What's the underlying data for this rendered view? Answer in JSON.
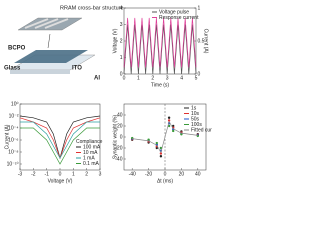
{
  "diagram": {
    "structure_label": "RRAM cross-bar structure",
    "layer_top": "BCPO",
    "layer_bottom": "Glass",
    "electrode": "ITO",
    "metal": "Al"
  },
  "chart_data": [
    {
      "type": "line",
      "x_label": "Time (s)",
      "y_label": "Voltage (V)",
      "y2_label": "Current (A)",
      "x": [
        0,
        0.25,
        0.5,
        0.75,
        1,
        1.25,
        1.5,
        1.75,
        2,
        2.25,
        2.5,
        2.75,
        3,
        3.25,
        3.5,
        3.75,
        4,
        4.25,
        4.5,
        4.75,
        5
      ],
      "xlim": [
        0,
        5
      ],
      "xticks": [
        0,
        1,
        2,
        3,
        4,
        5
      ],
      "ylim": [
        0,
        4
      ],
      "yticks": [
        0,
        1,
        2,
        3,
        4
      ],
      "y2lim": [
        0,
        1
      ],
      "y2ticks": [
        0,
        0.5,
        1
      ],
      "legend": "top",
      "series": [
        {
          "name": "Voltage pulse",
          "color": "#555555",
          "values": [
            0,
            3,
            0,
            3,
            0,
            3,
            0,
            3,
            0,
            3,
            0,
            3,
            0,
            3,
            0,
            3,
            0,
            3,
            0,
            3,
            0
          ]
        },
        {
          "name": "Response current",
          "color": "#e0409a",
          "axis": "y2",
          "values": [
            0.1,
            0.85,
            0.1,
            0.85,
            0.1,
            0.85,
            0.1,
            0.85,
            0.1,
            0.85,
            0.1,
            0.85,
            0.1,
            0.85,
            0.1,
            0.85,
            0.1,
            0.85,
            0.1,
            0.85,
            0.1
          ]
        }
      ]
    },
    {
      "type": "line",
      "x_label": "Voltage (V)",
      "y_label": "Current (A)",
      "log_y": true,
      "x": [
        -3,
        -2,
        -1,
        -0.5,
        0,
        0.5,
        1,
        2,
        3
      ],
      "xlim": [
        -3,
        3
      ],
      "xticks": [
        -3,
        -2,
        -1,
        0,
        1,
        2,
        3
      ],
      "ylim": [
        1e-11,
        1
      ],
      "yticks": [
        {
          "value": 1e-10,
          "label": "10⁻¹⁰"
        },
        {
          "value": 1e-08,
          "label": "10⁻⁸"
        },
        {
          "value": 1e-06,
          "label": "10⁻⁶"
        },
        {
          "value": 0.0001,
          "label": "10⁻⁴"
        },
        {
          "value": 0.01,
          "label": "10⁻²"
        },
        {
          "value": 1,
          "label": "10⁰"
        }
      ],
      "legend": "bottom-right",
      "legend_title": "Compliance",
      "series": [
        {
          "name": "100 mA",
          "color": "#222222",
          "values": [
            0.01,
            0.005,
            0.001,
            1e-05,
            1e-09,
            1e-05,
            0.001,
            0.005,
            0.01
          ]
        },
        {
          "name": "10 mA",
          "color": "#e03030",
          "values": [
            0.005,
            0.001,
            0.0001,
            1e-06,
            1e-09,
            1e-06,
            0.0001,
            0.001,
            0.005
          ]
        },
        {
          "name": "1 mA",
          "color": "#2aa0a0",
          "values": [
            0.001,
            0.001,
            1e-05,
            1e-07,
            1e-09,
            1e-07,
            1e-05,
            0.001,
            0.001
          ]
        },
        {
          "name": "0.1 mA",
          "color": "#3a9a3a",
          "values": [
            0.0001,
            0.0001,
            1e-06,
            1e-08,
            1e-10,
            1e-08,
            1e-06,
            0.0001,
            0.0001
          ]
        }
      ]
    },
    {
      "type": "scatter",
      "x_label": "Δt (ms)",
      "y_label": "Synaptic weight (%)",
      "x": [
        -40,
        -20,
        -10,
        -5,
        5,
        10,
        20,
        40
      ],
      "xlim": [
        -50,
        50
      ],
      "xticks": [
        -40,
        -20,
        0,
        20,
        40
      ],
      "ylim": [
        -60,
        60
      ],
      "yticks": [
        -40,
        -20,
        0,
        20,
        40
      ],
      "reference_line_x": 0,
      "legend": "top-right",
      "series": [
        {
          "name": "1s",
          "color": "#222222",
          "values": [
            -5,
            -10,
            -20,
            -35,
            35,
            20,
            10,
            5
          ]
        },
        {
          "name": "10s",
          "color": "#e03030",
          "values": [
            -4,
            -8,
            -17,
            -30,
            30,
            17,
            8,
            4
          ]
        },
        {
          "name": "50s",
          "color": "#2255cc",
          "values": [
            -3,
            -6,
            -14,
            -25,
            25,
            14,
            6,
            3
          ]
        },
        {
          "name": "100s",
          "color": "#3a9a3a",
          "values": [
            -2,
            -5,
            -11,
            -20,
            20,
            11,
            5,
            2
          ]
        },
        {
          "name": "Fitted curve",
          "color": "#888888",
          "mode": "line",
          "values": [
            -3,
            -7,
            -15,
            -28,
            28,
            15,
            7,
            3
          ]
        }
      ]
    }
  ]
}
